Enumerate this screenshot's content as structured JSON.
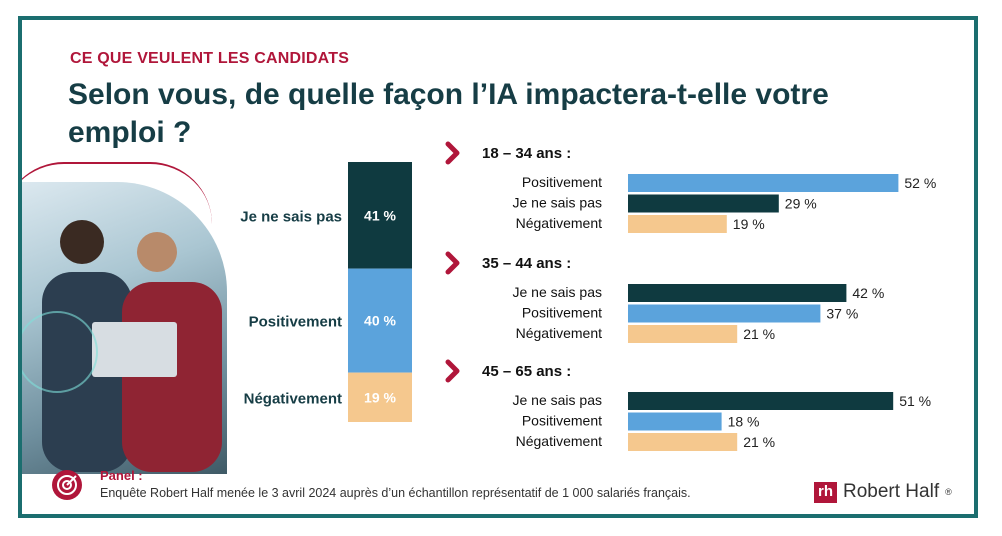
{
  "kicker": "CE QUE VEULENT LES CANDIDATS",
  "title": "Selon vous, de quelle façon l’IA impactera-t-elle votre emploi ?",
  "footer": {
    "label": "Panel :",
    "text": "Enquête Robert Half menée le 3 avril 2024 auprès d’un échantillon représentatif de 1 000 salariés français."
  },
  "logo": {
    "mark": "rh",
    "text": "Robert Half",
    "mark_symbol": "®"
  },
  "colors": {
    "Je ne sais pas": "#0f3a40",
    "Positivement": "#5ba3dc",
    "Négativement": "#f5c88e",
    "accent": "#b0163a",
    "frame": "#1b6e6f"
  },
  "chart_data": [
    {
      "type": "bar",
      "stacked": true,
      "orientation": "vertical",
      "categories": [
        "Je ne sais pas",
        "Positivement",
        "Négativement"
      ],
      "values": [
        41,
        40,
        19
      ],
      "value_labels": [
        "41 %",
        "40 %",
        "19 %"
      ]
    },
    {
      "type": "bar",
      "orientation": "horizontal",
      "group": "18 – 34 ans :",
      "categories": [
        "Positivement",
        "Je ne sais pas",
        "Négativement"
      ],
      "values": [
        52,
        29,
        19
      ],
      "value_labels": [
        "52 %",
        "29 %",
        "19 %"
      ]
    },
    {
      "type": "bar",
      "orientation": "horizontal",
      "group": "35 – 44 ans :",
      "categories": [
        "Je ne sais pas",
        "Positivement",
        "Négativement"
      ],
      "values": [
        42,
        37,
        21
      ],
      "value_labels": [
        "42 %",
        "37 %",
        "21 %"
      ]
    },
    {
      "type": "bar",
      "orientation": "horizontal",
      "group": "45 – 65 ans :",
      "categories": [
        "Je ne sais pas",
        "Positivement",
        "Négativement"
      ],
      "values": [
        51,
        18,
        21
      ],
      "value_labels": [
        "51 %",
        "18 %",
        "21 %"
      ]
    }
  ]
}
